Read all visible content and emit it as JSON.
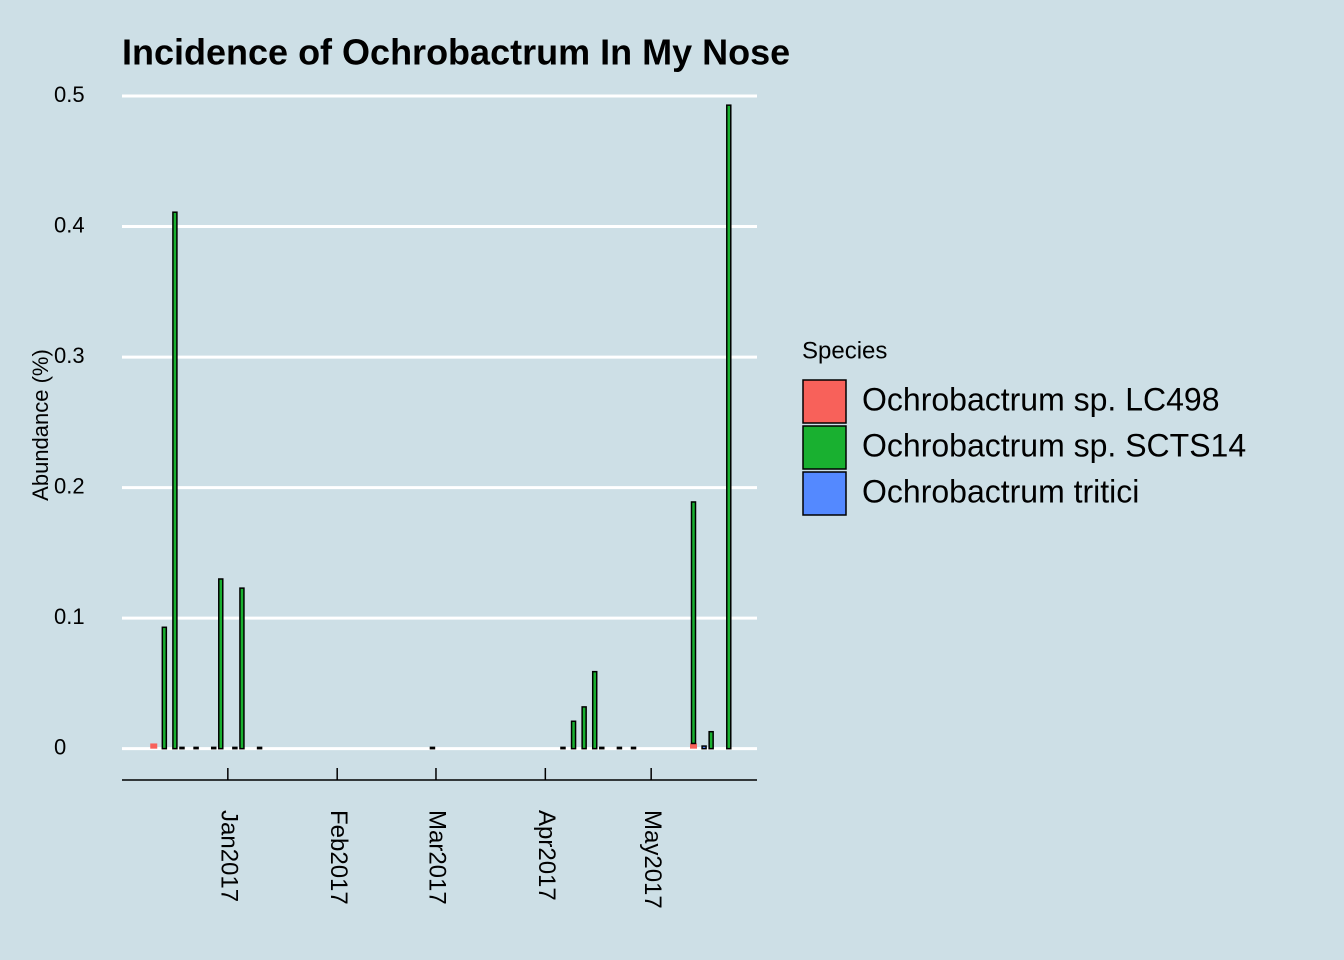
{
  "chart_data": {
    "type": "bar",
    "title": "Incidence of Ochrobactrum In My Nose",
    "y_label": "Abundance (%)",
    "legend_title": "Species",
    "legend_position": "right",
    "stacked": true,
    "grid": true,
    "x": [
      -21,
      -18,
      -15,
      -13,
      -9,
      -4,
      -2,
      2,
      4,
      9,
      58,
      95,
      98,
      101,
      104,
      106,
      111,
      115,
      132,
      135,
      137,
      142
    ],
    "xlim": [
      -30,
      150
    ],
    "xticks": [
      {
        "value": 0,
        "label": "Jan2017"
      },
      {
        "value": 31,
        "label": "Feb2017"
      },
      {
        "value": 59,
        "label": "Mar2017"
      },
      {
        "value": 90,
        "label": "Apr2017"
      },
      {
        "value": 120,
        "label": "May2017"
      }
    ],
    "ylim": [
      -0.024,
      0.505
    ],
    "yticks": [
      0,
      0.1,
      0.2,
      0.3,
      0.4,
      0.5
    ],
    "series": [
      {
        "name": "Ochrobactrum sp. LC498",
        "color": "#f8615a",
        "values": [
          0.004,
          null,
          null,
          null,
          null,
          null,
          null,
          null,
          null,
          null,
          null,
          null,
          null,
          null,
          null,
          null,
          null,
          null,
          0.004,
          null,
          null,
          null
        ]
      },
      {
        "name": "Ochrobactrum sp. SCTS14",
        "color": "#19b030",
        "values": [
          null,
          0.093,
          0.411,
          null,
          null,
          null,
          0.13,
          null,
          0.123,
          null,
          null,
          null,
          0.021,
          0.032,
          0.059,
          null,
          null,
          null,
          0.185,
          null,
          0.013,
          0.493
        ]
      },
      {
        "name": "Ochrobactrum tritici",
        "color": "#5489ff",
        "values": [
          null,
          null,
          null,
          0.001,
          0.001,
          0.001,
          null,
          0.001,
          null,
          0.001,
          0.001,
          0.001,
          null,
          null,
          null,
          0.001,
          0.001,
          0.001,
          null,
          0.002,
          null,
          null
        ]
      }
    ]
  }
}
